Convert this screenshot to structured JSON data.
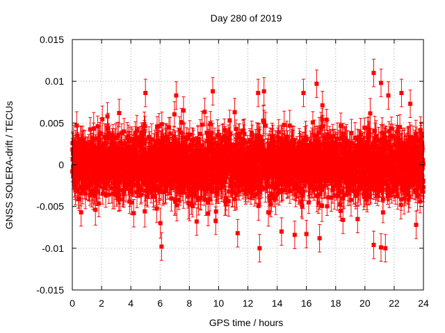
{
  "chart_data": {
    "type": "scatter",
    "title": "Day 280 of 2019",
    "xlabel": "GPS time / hours",
    "ylabel": "GNSS SOLERA-drift / TECUs",
    "xlim": [
      0,
      24
    ],
    "ylim": [
      -0.015,
      0.015
    ],
    "x_ticks": [
      0,
      2,
      4,
      6,
      8,
      10,
      12,
      14,
      16,
      18,
      20,
      22,
      24
    ],
    "x_tick_labels": [
      "0",
      "2",
      "4",
      "6",
      "8",
      "10",
      "12",
      "14",
      "16",
      "18",
      "20",
      "22",
      "24"
    ],
    "y_ticks": [
      -0.015,
      -0.01,
      -0.005,
      0,
      0.005,
      0.01,
      0.015
    ],
    "y_tick_labels": [
      "-0.015",
      "-0.01",
      "-0.005",
      "0",
      "0.005",
      "0.01",
      "0.015"
    ],
    "grid": true,
    "marker": "square",
    "error_bars": true,
    "series_color": "#ff0000",
    "point_count": 2880,
    "typical_abs_value": 0.003,
    "typical_error": 0.0015,
    "notable_points": [
      {
        "x": 0.3,
        "y": 0.0047
      },
      {
        "x": 0.6,
        "y": -0.0057
      },
      {
        "x": 2.4,
        "y": 0.0058
      },
      {
        "x": 3.2,
        "y": 0.0062
      },
      {
        "x": 4.2,
        "y": -0.0058
      },
      {
        "x": 5.0,
        "y": 0.0086
      },
      {
        "x": 6.1,
        "y": -0.0098
      },
      {
        "x": 7.1,
        "y": 0.0083
      },
      {
        "x": 7.6,
        "y": 0.0065
      },
      {
        "x": 8.5,
        "y": -0.0068
      },
      {
        "x": 9.6,
        "y": 0.0088
      },
      {
        "x": 9.8,
        "y": -0.0067
      },
      {
        "x": 11.1,
        "y": 0.0063
      },
      {
        "x": 11.3,
        "y": -0.0082
      },
      {
        "x": 12.7,
        "y": 0.0086
      },
      {
        "x": 12.8,
        "y": -0.01
      },
      {
        "x": 13.1,
        "y": 0.0088
      },
      {
        "x": 13.4,
        "y": -0.0057
      },
      {
        "x": 14.3,
        "y": -0.008
      },
      {
        "x": 15.2,
        "y": -0.0084
      },
      {
        "x": 15.8,
        "y": 0.0086
      },
      {
        "x": 16.0,
        "y": -0.0083
      },
      {
        "x": 16.7,
        "y": 0.0097
      },
      {
        "x": 16.9,
        "y": -0.0088
      },
      {
        "x": 18.5,
        "y": -0.0066
      },
      {
        "x": 19.5,
        "y": -0.0065
      },
      {
        "x": 20.6,
        "y": 0.011
      },
      {
        "x": 20.6,
        "y": -0.0096
      },
      {
        "x": 21.1,
        "y": 0.0098
      },
      {
        "x": 21.1,
        "y": -0.0099
      },
      {
        "x": 21.4,
        "y": -0.01
      },
      {
        "x": 21.6,
        "y": 0.0083
      },
      {
        "x": 22.5,
        "y": 0.0086
      },
      {
        "x": 23.1,
        "y": 0.0073
      },
      {
        "x": 23.5,
        "y": -0.0072
      },
      {
        "x": 23.8,
        "y": 0.0041
      }
    ]
  }
}
